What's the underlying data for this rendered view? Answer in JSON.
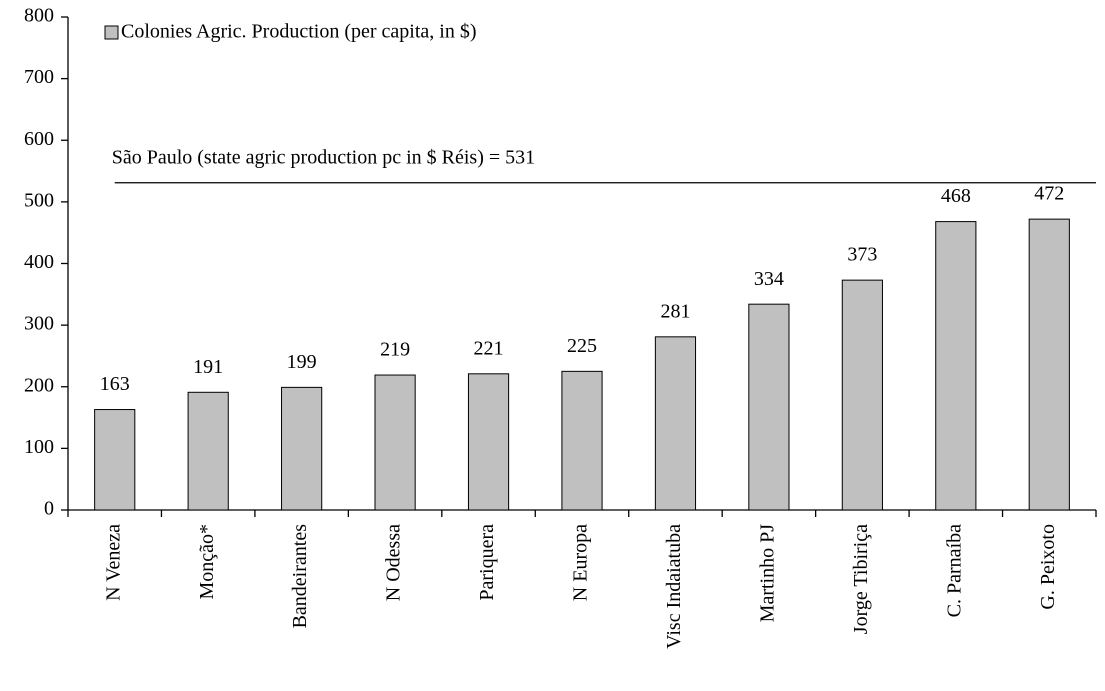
{
  "chart_data": {
    "type": "bar",
    "categories": [
      "N Veneza",
      "Monção*",
      "Bandeirantes",
      "N Odessa",
      "Pariquera",
      "N Europa",
      "Visc Indaiatuba",
      "Martinho PJ",
      "Jorge Tibiriça",
      "C. Parnaíba",
      "G. Peixoto"
    ],
    "series": [
      {
        "name": "Colonies Agric. Production (per capita, in $)",
        "color": "#c0c0c0",
        "values": [
          163,
          191,
          199,
          219,
          221,
          225,
          281,
          334,
          373,
          468,
          472
        ]
      }
    ],
    "reference_line": {
      "value": 531,
      "label": "São Paulo (state agric production pc in $ Réis) = 531"
    },
    "ylim": [
      0,
      800
    ],
    "yticks": [
      0,
      100,
      200,
      300,
      400,
      500,
      600,
      700,
      800
    ],
    "grid": false,
    "legend": "top-left"
  }
}
